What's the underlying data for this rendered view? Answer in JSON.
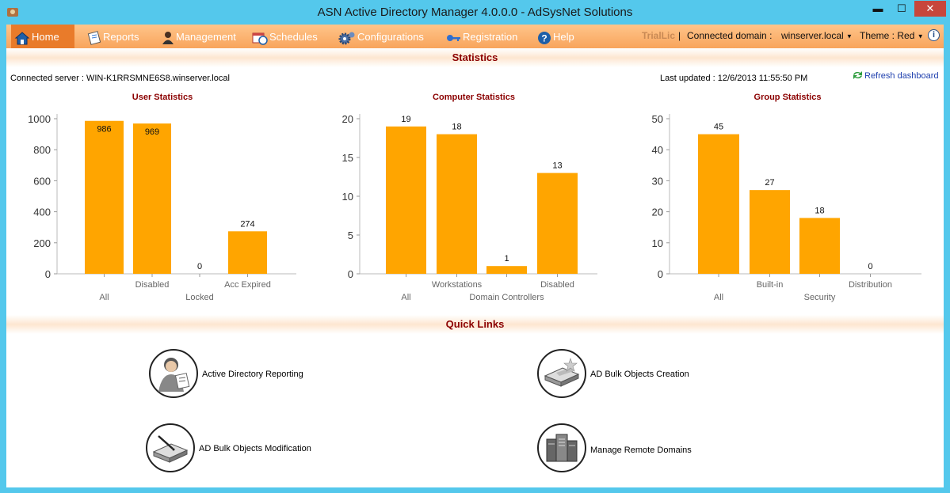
{
  "window": {
    "title": "ASN Active Directory Manager 4.0.0.0 - AdSysNet Solutions"
  },
  "nav": {
    "items": [
      {
        "label": "Home",
        "icon": "home-icon"
      },
      {
        "label": "Reports",
        "icon": "reports-icon"
      },
      {
        "label": "Management",
        "icon": "management-icon"
      },
      {
        "label": "Schedules",
        "icon": "schedules-icon"
      },
      {
        "label": "Configurations",
        "icon": "gear-icon"
      },
      {
        "label": "Registration",
        "icon": "key-icon"
      },
      {
        "label": "Help",
        "icon": "help-icon"
      }
    ],
    "trial": "TrialLic",
    "separator": "|",
    "domain_label": "Connected domain :",
    "domain_value": "winserver.local",
    "theme_label": "Theme : Red"
  },
  "statistics": {
    "header": "Statistics",
    "connected_server": "Connected server : WIN-K1RRSMNE6S8.winserver.local",
    "last_updated": "Last updated : 12/6/2013 11:55:50 PM",
    "refresh": "Refresh dashboard"
  },
  "chart_data": [
    {
      "type": "bar",
      "title": "User Statistics",
      "categories": [
        "All",
        "Disabled",
        "Locked",
        "Acc Expired"
      ],
      "values": [
        986,
        969,
        0,
        274
      ],
      "ylim": [
        0,
        1000
      ],
      "yticks": [
        0,
        200,
        400,
        600,
        800,
        1000
      ],
      "color": "#ffa500"
    },
    {
      "type": "bar",
      "title": "Computer Statistics",
      "categories": [
        "All",
        "Workstations",
        "Domain Controllers",
        "Disabled"
      ],
      "values": [
        19,
        18,
        1,
        13
      ],
      "ylim": [
        0,
        20
      ],
      "yticks": [
        0,
        5,
        10,
        15,
        20
      ],
      "color": "#ffa500"
    },
    {
      "type": "bar",
      "title": "Group Statistics",
      "categories": [
        "All",
        "Built-in",
        "Security",
        "Distribution"
      ],
      "values": [
        45,
        27,
        18,
        0
      ],
      "ylim": [
        0,
        50
      ],
      "yticks": [
        0,
        10,
        20,
        30,
        40,
        50
      ],
      "color": "#ffa500"
    }
  ],
  "quick_links": {
    "header": "Quick Links",
    "items": [
      {
        "label": "Active Directory Reporting",
        "icon": "ad-reporting-icon"
      },
      {
        "label": "AD Bulk Objects Creation",
        "icon": "bulk-creation-icon"
      },
      {
        "label": "AD Bulk Objects Modification",
        "icon": "bulk-modification-icon"
      },
      {
        "label": "Manage Remote Domains",
        "icon": "remote-domains-icon"
      }
    ]
  }
}
